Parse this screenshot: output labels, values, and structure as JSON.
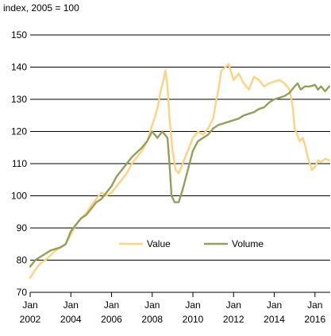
{
  "chart_data": {
    "type": "line",
    "title": "",
    "ylabel": "index, 2005 = 100",
    "xlabel": "",
    "ylim": [
      70,
      150
    ],
    "yticks": [
      70,
      80,
      90,
      100,
      110,
      120,
      130,
      140,
      150
    ],
    "xlim": [
      2002.0,
      2016.75
    ],
    "xticks": [
      {
        "x": 2002,
        "month": "Jan",
        "year": "2002"
      },
      {
        "x": 2004,
        "month": "Jan",
        "year": "2004"
      },
      {
        "x": 2006,
        "month": "Jan",
        "year": "2006"
      },
      {
        "x": 2008,
        "month": "Jan",
        "year": "2008"
      },
      {
        "x": 2010,
        "month": "Jan",
        "year": "2010"
      },
      {
        "x": 2012,
        "month": "Jan",
        "year": "2012"
      },
      {
        "x": 2014,
        "month": "Jan",
        "year": "2014"
      },
      {
        "x": 2016,
        "month": "Jan",
        "year": "2016"
      }
    ],
    "grid": "horizontal",
    "legend_position": "bottom-center",
    "series": [
      {
        "name": "Value",
        "color": "#FFD27F",
        "points": [
          [
            2002.0,
            74.5
          ],
          [
            2002.25,
            77.0
          ],
          [
            2002.5,
            79.0
          ],
          [
            2002.75,
            80.0
          ],
          [
            2003.0,
            81.5
          ],
          [
            2003.25,
            83.0
          ],
          [
            2003.5,
            84.0
          ],
          [
            2003.75,
            85.0
          ],
          [
            2004.0,
            88.0
          ],
          [
            2004.25,
            91.0
          ],
          [
            2004.5,
            93.0
          ],
          [
            2004.75,
            94.5
          ],
          [
            2005.0,
            97.0
          ],
          [
            2005.25,
            99.0
          ],
          [
            2005.5,
            101.0
          ],
          [
            2005.75,
            100.0
          ],
          [
            2006.0,
            101.0
          ],
          [
            2006.25,
            103.0
          ],
          [
            2006.5,
            105.0
          ],
          [
            2006.75,
            107.0
          ],
          [
            2007.0,
            110.0
          ],
          [
            2007.25,
            112.0
          ],
          [
            2007.5,
            114.0
          ],
          [
            2007.75,
            117.0
          ],
          [
            2008.0,
            122.0
          ],
          [
            2008.25,
            127.0
          ],
          [
            2008.4,
            132.0
          ],
          [
            2008.55,
            136.0
          ],
          [
            2008.65,
            139.0
          ],
          [
            2008.75,
            134.0
          ],
          [
            2008.85,
            124.0
          ],
          [
            2009.0,
            114.0
          ],
          [
            2009.15,
            108.0
          ],
          [
            2009.3,
            107.0
          ],
          [
            2009.5,
            110.0
          ],
          [
            2009.75,
            114.0
          ],
          [
            2010.0,
            118.0
          ],
          [
            2010.25,
            120.0
          ],
          [
            2010.5,
            119.0
          ],
          [
            2010.75,
            121.0
          ],
          [
            2011.0,
            124.0
          ],
          [
            2011.1,
            128.0
          ],
          [
            2011.25,
            133.0
          ],
          [
            2011.4,
            139.0
          ],
          [
            2011.6,
            140.0
          ],
          [
            2011.75,
            141.0
          ],
          [
            2011.9,
            138.0
          ],
          [
            2012.0,
            136.0
          ],
          [
            2012.25,
            138.0
          ],
          [
            2012.5,
            135.0
          ],
          [
            2012.75,
            133.0
          ],
          [
            2013.0,
            137.0
          ],
          [
            2013.25,
            136.0
          ],
          [
            2013.5,
            134.0
          ],
          [
            2013.75,
            135.0
          ],
          [
            2014.0,
            135.5
          ],
          [
            2014.25,
            136.0
          ],
          [
            2014.5,
            135.0
          ],
          [
            2014.75,
            133.0
          ],
          [
            2014.9,
            128.0
          ],
          [
            2015.0,
            121.0
          ],
          [
            2015.25,
            117.0
          ],
          [
            2015.4,
            118.0
          ],
          [
            2015.5,
            116.0
          ],
          [
            2015.65,
            112.0
          ],
          [
            2015.75,
            110.0
          ],
          [
            2015.85,
            108.0
          ],
          [
            2016.0,
            109.0
          ],
          [
            2016.15,
            111.0
          ],
          [
            2016.3,
            110.5
          ],
          [
            2016.5,
            111.5
          ],
          [
            2016.7,
            111.0
          ]
        ]
      },
      {
        "name": "Volume",
        "color": "#94A05A",
        "points": [
          [
            2002.0,
            78.0
          ],
          [
            2002.25,
            80.0
          ],
          [
            2002.5,
            81.0
          ],
          [
            2002.75,
            82.0
          ],
          [
            2003.0,
            83.0
          ],
          [
            2003.25,
            83.5
          ],
          [
            2003.5,
            84.0
          ],
          [
            2003.75,
            85.0
          ],
          [
            2004.0,
            89.0
          ],
          [
            2004.25,
            91.0
          ],
          [
            2004.5,
            93.0
          ],
          [
            2004.75,
            94.0
          ],
          [
            2005.0,
            96.0
          ],
          [
            2005.25,
            98.0
          ],
          [
            2005.5,
            99.0
          ],
          [
            2005.75,
            101.0
          ],
          [
            2006.0,
            103.0
          ],
          [
            2006.25,
            106.0
          ],
          [
            2006.5,
            108.0
          ],
          [
            2006.75,
            110.0
          ],
          [
            2007.0,
            112.0
          ],
          [
            2007.25,
            113.5
          ],
          [
            2007.5,
            115.0
          ],
          [
            2007.75,
            117.0
          ],
          [
            2008.0,
            120.0
          ],
          [
            2008.25,
            118.0
          ],
          [
            2008.5,
            120.0
          ],
          [
            2008.75,
            118.0
          ],
          [
            2008.85,
            110.0
          ],
          [
            2008.95,
            100.0
          ],
          [
            2009.1,
            98.0
          ],
          [
            2009.3,
            98.0
          ],
          [
            2009.5,
            102.0
          ],
          [
            2009.75,
            108.0
          ],
          [
            2010.0,
            114.0
          ],
          [
            2010.25,
            117.0
          ],
          [
            2010.5,
            118.0
          ],
          [
            2010.75,
            119.0
          ],
          [
            2011.0,
            121.0
          ],
          [
            2011.25,
            122.0
          ],
          [
            2011.5,
            122.5
          ],
          [
            2011.75,
            123.0
          ],
          [
            2012.0,
            123.5
          ],
          [
            2012.25,
            124.0
          ],
          [
            2012.5,
            125.0
          ],
          [
            2012.75,
            125.5
          ],
          [
            2013.0,
            126.0
          ],
          [
            2013.25,
            127.0
          ],
          [
            2013.5,
            127.5
          ],
          [
            2013.75,
            129.0
          ],
          [
            2014.0,
            130.0
          ],
          [
            2014.25,
            130.5
          ],
          [
            2014.5,
            131.0
          ],
          [
            2014.75,
            132.0
          ],
          [
            2015.0,
            134.0
          ],
          [
            2015.15,
            135.0
          ],
          [
            2015.3,
            133.0
          ],
          [
            2015.5,
            134.0
          ],
          [
            2015.75,
            134.0
          ],
          [
            2016.0,
            134.5
          ],
          [
            2016.15,
            133.0
          ],
          [
            2016.3,
            134.0
          ],
          [
            2016.5,
            132.5
          ],
          [
            2016.7,
            134.0
          ]
        ]
      }
    ]
  }
}
